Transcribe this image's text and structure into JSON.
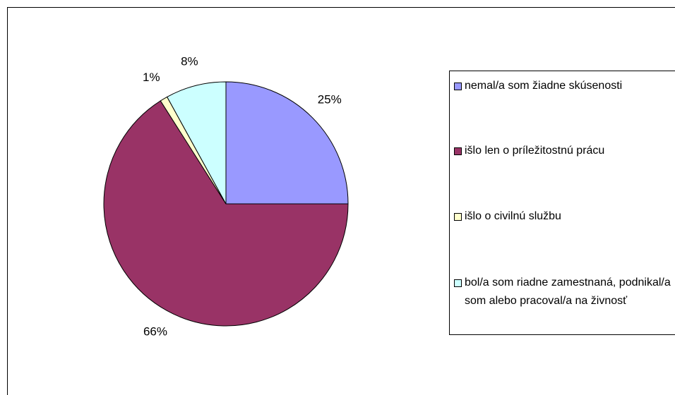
{
  "chart_data": {
    "type": "pie",
    "categories": [
      "nemal/a som žiadne skúsenosti",
      "išlo len o príležitostnú prácu",
      "išlo o civilnú službu",
      "bol/a som riadne zamestnaná, podnikal/a som alebo pracoval/a na živnosť"
    ],
    "values": [
      25,
      66,
      1,
      8
    ],
    "value_labels": [
      "25%",
      "66%",
      "1%",
      "8%"
    ],
    "colors": [
      "#9999ff",
      "#993366",
      "#ffffcc",
      "#ccffff"
    ],
    "legend": "right"
  }
}
